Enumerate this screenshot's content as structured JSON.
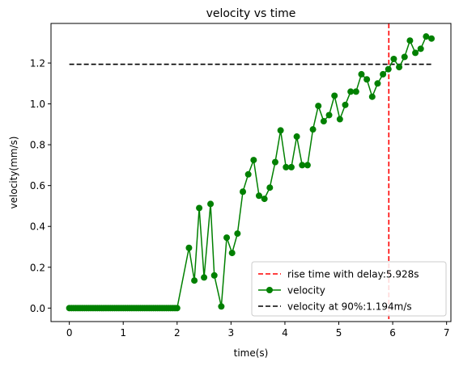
{
  "chart_data": {
    "type": "line",
    "title": "velocity vs time",
    "xlabel": "time(s)",
    "ylabel": "velocity(mm/s)",
    "xlim": [
      -0.34,
      7.08
    ],
    "ylim": [
      -0.066,
      1.394
    ],
    "xticks": [
      0,
      1,
      2,
      3,
      4,
      5,
      6,
      7
    ],
    "yticks": [
      0.0,
      0.2,
      0.4,
      0.6,
      0.8,
      1.0,
      1.2
    ],
    "xtick_labels": [
      "0",
      "1",
      "2",
      "3",
      "4",
      "5",
      "6",
      "7"
    ],
    "ytick_labels": [
      "0.0",
      "0.2",
      "0.4",
      "0.6",
      "0.8",
      "1.0",
      "1.2"
    ],
    "grid": false,
    "legend_position": "lower-right",
    "series": [
      {
        "name": "velocity",
        "color": "#008000",
        "marker": "circle",
        "x": [
          0.0,
          0.04,
          0.08,
          0.12,
          0.16,
          0.2,
          0.24,
          0.28,
          0.32,
          0.36,
          0.4,
          0.44,
          0.48,
          0.52,
          0.56,
          0.6,
          0.64,
          0.68,
          0.72,
          0.76,
          0.8,
          0.84,
          0.88,
          0.92,
          0.96,
          1.0,
          1.04,
          1.08,
          1.12,
          1.16,
          1.2,
          1.24,
          1.28,
          1.32,
          1.36,
          1.4,
          1.44,
          1.48,
          1.52,
          1.56,
          1.6,
          1.64,
          1.68,
          1.72,
          1.76,
          1.8,
          1.84,
          1.88,
          1.92,
          1.96,
          2.0,
          2.22,
          2.32,
          2.41,
          2.5,
          2.62,
          2.69,
          2.82,
          2.92,
          3.02,
          3.12,
          3.22,
          3.32,
          3.42,
          3.52,
          3.62,
          3.72,
          3.82,
          3.92,
          4.02,
          4.12,
          4.22,
          4.32,
          4.42,
          4.52,
          4.62,
          4.72,
          4.82,
          4.92,
          5.02,
          5.12,
          5.22,
          5.32,
          5.42,
          5.52,
          5.62,
          5.72,
          5.82,
          5.92,
          6.02,
          6.12,
          6.22,
          6.32,
          6.42,
          6.52,
          6.62,
          6.72
        ],
        "y": [
          0.0,
          0.0,
          0.0,
          0.0,
          0.0,
          0.0,
          0.0,
          0.0,
          0.0,
          0.0,
          0.0,
          0.0,
          0.0,
          0.0,
          0.0,
          0.0,
          0.0,
          0.0,
          0.0,
          0.0,
          0.0,
          0.0,
          0.0,
          0.0,
          0.0,
          0.0,
          0.0,
          0.0,
          0.0,
          0.0,
          0.0,
          0.0,
          0.0,
          0.0,
          0.0,
          0.0,
          0.0,
          0.0,
          0.0,
          0.0,
          0.0,
          0.0,
          0.0,
          0.0,
          0.0,
          0.0,
          0.0,
          0.0,
          0.0,
          0.0,
          0.0,
          0.295,
          0.135,
          0.49,
          0.15,
          0.51,
          0.16,
          0.008,
          0.345,
          0.27,
          0.365,
          0.57,
          0.655,
          0.725,
          0.55,
          0.535,
          0.59,
          0.715,
          0.87,
          0.69,
          0.69,
          0.84,
          0.7,
          0.7,
          0.875,
          0.99,
          0.915,
          0.945,
          1.04,
          0.925,
          0.995,
          1.06,
          1.06,
          1.145,
          1.12,
          1.035,
          1.1,
          1.145,
          1.17,
          1.22,
          1.18,
          1.23,
          1.31,
          1.25,
          1.27,
          1.33,
          1.32
        ]
      },
      {
        "name": "rise time with delay:5.928s",
        "color": "#ff0000",
        "style": "dashed",
        "orientation": "vertical",
        "x_value": 5.928
      },
      {
        "name": "velocity at 90%:1.194m/s",
        "color": "#000000",
        "style": "dashed",
        "orientation": "horizontal",
        "y_value": 1.194,
        "x_start": 0.0,
        "x_end": 6.72
      }
    ],
    "legend": [
      {
        "label": "rise time with delay:5.928s",
        "color": "#ff0000",
        "style": "dashed"
      },
      {
        "label": "velocity",
        "color": "#008000",
        "style": "line-marker"
      },
      {
        "label": "velocity at 90%:1.194m/s",
        "color": "#000000",
        "style": "dashed"
      }
    ]
  }
}
